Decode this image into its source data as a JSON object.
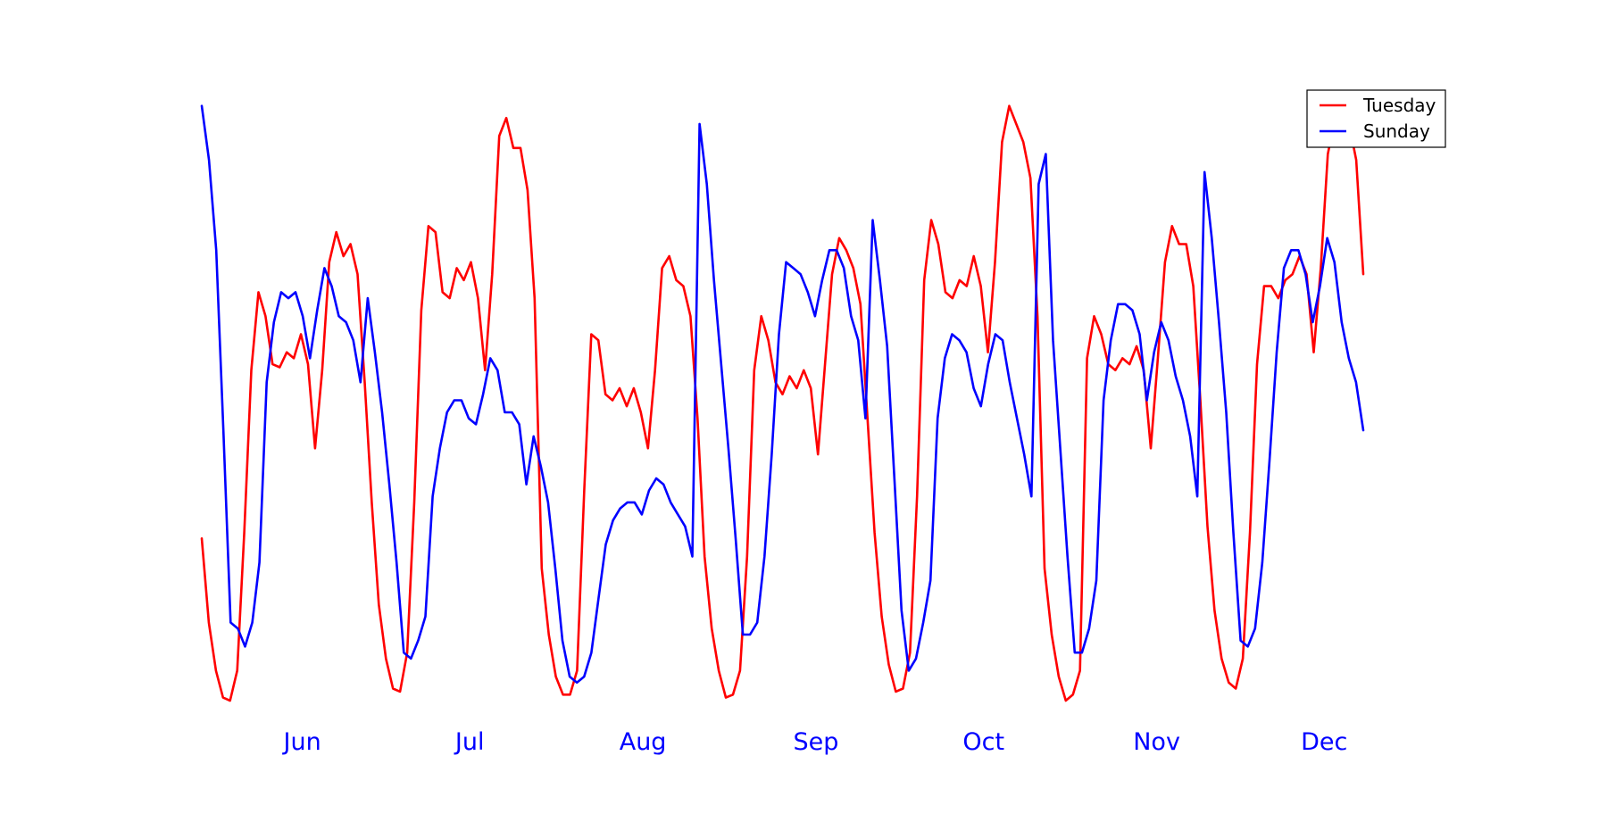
{
  "chart_data": {
    "type": "line",
    "title": "",
    "xlabel": "",
    "ylabel": "",
    "x_tick_labels": [
      "Jun",
      "Jul",
      "Aug",
      "Sep",
      "Oct",
      "Nov",
      "Dec"
    ],
    "x_tick_dates": [
      "2000-06-01",
      "2000-07-01",
      "2000-08-01",
      "2000-09-01",
      "2000-10-01",
      "2000-11-01",
      "2000-12-01"
    ],
    "x_tick_color": "#0000ff",
    "x_start": "2000-05-14",
    "x_end": "2000-12-08",
    "y_range": [
      0,
      1
    ],
    "y_axis_visible": false,
    "grid": false,
    "legend": "top-right",
    "series": [
      {
        "name": "Tuesday",
        "color": "#ff0000",
        "values": [
          0.27,
          0.13,
          0.05,
          0.005,
          0.0,
          0.05,
          0.28,
          0.55,
          0.68,
          0.64,
          0.56,
          0.555,
          0.58,
          0.57,
          0.61,
          0.56,
          0.42,
          0.55,
          0.73,
          0.78,
          0.74,
          0.76,
          0.71,
          0.53,
          0.33,
          0.16,
          0.07,
          0.02,
          0.015,
          0.08,
          0.33,
          0.65,
          0.79,
          0.78,
          0.68,
          0.67,
          0.72,
          0.7,
          0.73,
          0.67,
          0.55,
          0.71,
          0.94,
          0.97,
          0.92,
          0.92,
          0.85,
          0.67,
          0.22,
          0.11,
          0.04,
          0.01,
          0.01,
          0.05,
          0.35,
          0.61,
          0.6,
          0.51,
          0.5,
          0.52,
          0.49,
          0.52,
          0.48,
          0.42,
          0.55,
          0.72,
          0.74,
          0.7,
          0.69,
          0.64,
          0.47,
          0.24,
          0.12,
          0.05,
          0.005,
          0.01,
          0.05,
          0.24,
          0.55,
          0.64,
          0.6,
          0.53,
          0.51,
          0.54,
          0.52,
          0.55,
          0.52,
          0.41,
          0.56,
          0.71,
          0.77,
          0.75,
          0.72,
          0.66,
          0.47,
          0.28,
          0.14,
          0.06,
          0.015,
          0.02,
          0.08,
          0.34,
          0.7,
          0.8,
          0.76,
          0.68,
          0.67,
          0.7,
          0.69,
          0.74,
          0.69,
          0.58,
          0.73,
          0.93,
          0.99,
          0.96,
          0.93,
          0.87,
          0.64,
          0.22,
          0.11,
          0.04,
          0.0,
          0.01,
          0.05,
          0.57,
          0.64,
          0.61,
          0.56,
          0.55,
          0.57,
          0.56,
          0.59,
          0.55,
          0.42,
          0.57,
          0.73,
          0.79,
          0.76,
          0.76,
          0.69,
          0.5,
          0.29,
          0.15,
          0.07,
          0.03,
          0.02,
          0.07,
          0.28,
          0.56,
          0.69,
          0.69,
          0.67,
          0.7,
          0.71,
          0.74,
          0.71,
          0.58,
          0.72,
          0.91,
          0.97,
          0.98,
          0.96,
          0.9,
          0.71
        ]
      },
      {
        "name": "Sunday",
        "color": "#0000ff",
        "values": [
          0.99,
          0.9,
          0.75,
          0.45,
          0.13,
          0.12,
          0.09,
          0.13,
          0.23,
          0.53,
          0.63,
          0.68,
          0.67,
          0.68,
          0.64,
          0.57,
          0.65,
          0.72,
          0.69,
          0.64,
          0.63,
          0.6,
          0.53,
          0.67,
          0.58,
          0.48,
          0.36,
          0.23,
          0.08,
          0.07,
          0.1,
          0.14,
          0.34,
          0.42,
          0.48,
          0.5,
          0.5,
          0.47,
          0.46,
          0.51,
          0.57,
          0.55,
          0.48,
          0.48,
          0.46,
          0.36,
          0.44,
          0.39,
          0.33,
          0.22,
          0.1,
          0.04,
          0.03,
          0.04,
          0.08,
          0.17,
          0.26,
          0.3,
          0.32,
          0.33,
          0.33,
          0.31,
          0.35,
          0.37,
          0.36,
          0.33,
          0.31,
          0.29,
          0.24,
          0.96,
          0.86,
          0.7,
          0.56,
          0.42,
          0.27,
          0.11,
          0.11,
          0.13,
          0.24,
          0.41,
          0.61,
          0.73,
          0.72,
          0.71,
          0.68,
          0.64,
          0.7,
          0.75,
          0.75,
          0.72,
          0.64,
          0.6,
          0.47,
          0.8,
          0.7,
          0.59,
          0.37,
          0.15,
          0.05,
          0.07,
          0.13,
          0.2,
          0.47,
          0.57,
          0.61,
          0.6,
          0.58,
          0.52,
          0.49,
          0.56,
          0.61,
          0.6,
          0.53,
          0.47,
          0.41,
          0.34,
          0.86,
          0.91,
          0.6,
          0.42,
          0.24,
          0.08,
          0.08,
          0.12,
          0.2,
          0.5,
          0.6,
          0.66,
          0.66,
          0.65,
          0.61,
          0.5,
          0.58,
          0.63,
          0.6,
          0.54,
          0.5,
          0.44,
          0.34,
          0.88,
          0.77,
          0.63,
          0.48,
          0.28,
          0.1,
          0.09,
          0.12,
          0.23,
          0.4,
          0.58,
          0.72,
          0.75,
          0.75,
          0.71,
          0.63,
          0.69,
          0.77,
          0.73,
          0.63,
          0.57,
          0.53,
          0.45
        ]
      }
    ]
  }
}
